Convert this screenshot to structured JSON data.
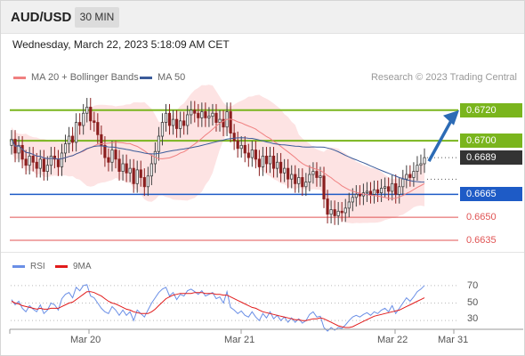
{
  "header": {
    "symbol": "AUD/USD",
    "timeframe": "30 MIN",
    "timestamp": "Wednesday, March 22, 2023 5:18:09 AM CET"
  },
  "legend": {
    "ma20": "MA 20 + Bollinger Bands",
    "ma50": "MA 50",
    "copyright": "Research © 2023 Trading Central"
  },
  "colors": {
    "resistance": "#7ab51d",
    "support": "#1e5bc6",
    "level": "#e05353",
    "price_tag": "#333333",
    "arrow": "#2c6bb5",
    "ma20": "#f08080",
    "ma50": "#3b5b9a",
    "bollinger_fill": "#fde3e3",
    "candle_up": "#3f3f3f",
    "candle_down": "#8b1f1f",
    "rsi": "#6a8fe6",
    "rsi_ma": "#e11b1b"
  },
  "levels": {
    "resistance_2": "0.6720",
    "resistance_1": "0.6700",
    "current_price": "0.6689",
    "support_1": "0.6665",
    "support_2": "0.6650",
    "support_3": "0.6635"
  },
  "rsi_panel": {
    "rsi_label": "RSI",
    "ma_label": "9MA",
    "ticks": [
      "70",
      "50",
      "30"
    ]
  },
  "x_axis": {
    "labels": [
      "Mar 20",
      "Mar 21",
      "Mar 22",
      "Mar 31"
    ]
  },
  "chart_data": {
    "type": "line",
    "title": "AUD/USD",
    "y_range": [
      0.6628,
      0.6735
    ],
    "rsi_range": [
      20,
      80
    ],
    "candles_close": [
      0.6701,
      0.6692,
      0.6697,
      0.6688,
      0.6684,
      0.669,
      0.6686,
      0.6682,
      0.6688,
      0.668,
      0.6684,
      0.669,
      0.6688,
      0.6683,
      0.6692,
      0.6698,
      0.6703,
      0.6699,
      0.6712,
      0.671,
      0.6718,
      0.6722,
      0.6713,
      0.6712,
      0.6704,
      0.6697,
      0.6689,
      0.6686,
      0.6694,
      0.6688,
      0.668,
      0.6685,
      0.6679,
      0.6682,
      0.6672,
      0.6681,
      0.6676,
      0.667,
      0.6677,
      0.6685,
      0.6693,
      0.6703,
      0.6712,
      0.6718,
      0.671,
      0.6714,
      0.6708,
      0.6713,
      0.671,
      0.6717,
      0.672,
      0.6718,
      0.6715,
      0.6719,
      0.6715,
      0.6716,
      0.6718,
      0.6712,
      0.6714,
      0.6709,
      0.6719,
      0.6705,
      0.67,
      0.6695,
      0.6697,
      0.6692,
      0.6689,
      0.6694,
      0.6688,
      0.6683,
      0.669,
      0.6685,
      0.669,
      0.6682,
      0.6686,
      0.6679,
      0.6682,
      0.6675,
      0.6678,
      0.6672,
      0.6676,
      0.667,
      0.6673,
      0.6678,
      0.668,
      0.6676,
      0.6677,
      0.6662,
      0.6652,
      0.6655,
      0.6651,
      0.6654,
      0.6653,
      0.6656,
      0.666,
      0.6663,
      0.6665,
      0.6664,
      0.6666,
      0.6667,
      0.6665,
      0.6668,
      0.6666,
      0.6669,
      0.667,
      0.6667,
      0.6672,
      0.6665,
      0.667,
      0.6675,
      0.6678,
      0.6676,
      0.668,
      0.6684,
      0.6685,
      0.6689
    ],
    "rsi": [
      54,
      48,
      52,
      44,
      40,
      47,
      43,
      40,
      48,
      38,
      42,
      50,
      48,
      42,
      55,
      60,
      62,
      56,
      68,
      64,
      70,
      71,
      58,
      56,
      50,
      44,
      40,
      38,
      46,
      42,
      36,
      42,
      36,
      40,
      30,
      42,
      38,
      34,
      42,
      50,
      56,
      62,
      66,
      68,
      58,
      62,
      54,
      60,
      58,
      64,
      66,
      63,
      60,
      64,
      58,
      60,
      62,
      55,
      57,
      50,
      63,
      45,
      42,
      38,
      41,
      36,
      34,
      40,
      34,
      30,
      38,
      33,
      40,
      32,
      36,
      30,
      34,
      28,
      33,
      28,
      32,
      27,
      30,
      37,
      40,
      34,
      35,
      22,
      18,
      22,
      19,
      22,
      21,
      25,
      30,
      34,
      36,
      34,
      37,
      39,
      36,
      40,
      38,
      42,
      44,
      40,
      47,
      38,
      44,
      50,
      56,
      52,
      57,
      63,
      66,
      70
    ],
    "rsi_ma": [
      52,
      50,
      49,
      47,
      46,
      45,
      44,
      43,
      44,
      43,
      43,
      44,
      44,
      44,
      46,
      48,
      50,
      51,
      54,
      57,
      60,
      63,
      63,
      62,
      60,
      58,
      55,
      52,
      50,
      49,
      47,
      45,
      43,
      42,
      40,
      39,
      38,
      38,
      38,
      40,
      43,
      47,
      51,
      55,
      57,
      59,
      60,
      61,
      61,
      61,
      61,
      62,
      62,
      62,
      61,
      61,
      61,
      60,
      60,
      59,
      59,
      57,
      55,
      53,
      51,
      49,
      47,
      45,
      44,
      42,
      40,
      39,
      38,
      37,
      36,
      35,
      34,
      33,
      32,
      31,
      31,
      30,
      30,
      31,
      32,
      32,
      33,
      32,
      30,
      28,
      26,
      24,
      23,
      22,
      22,
      23,
      25,
      27,
      29,
      31,
      33,
      35,
      36,
      37,
      38,
      39,
      40,
      41,
      42,
      44,
      46,
      48,
      50,
      52,
      54,
      56
    ]
  }
}
